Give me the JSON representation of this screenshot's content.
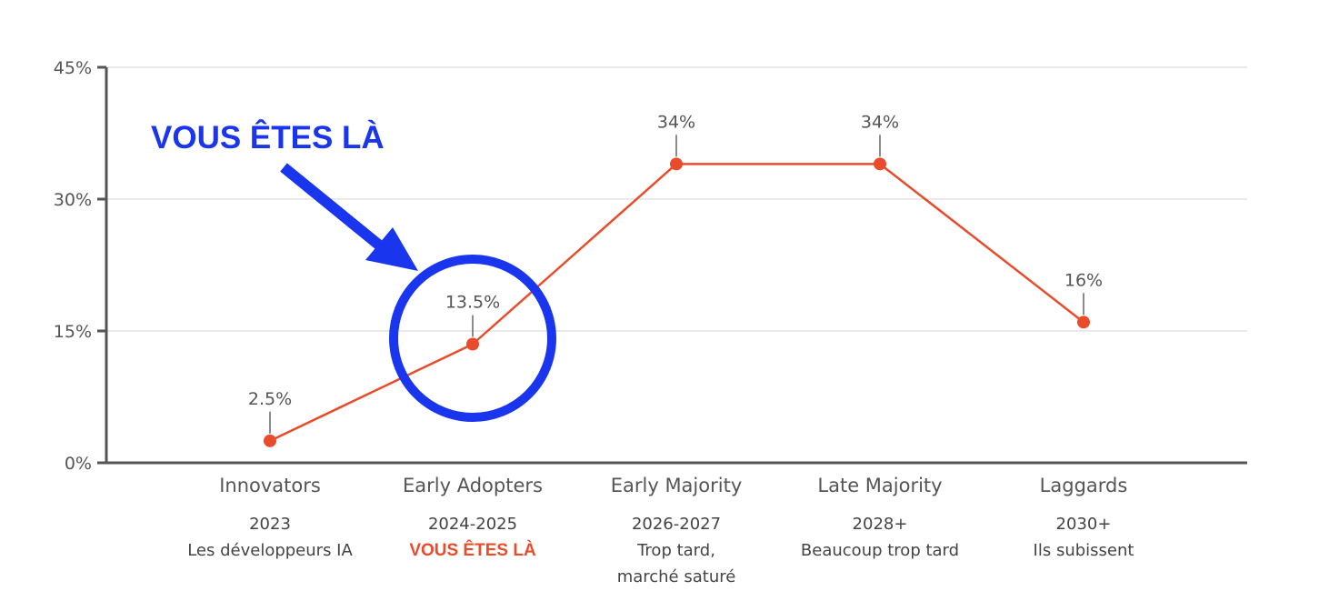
{
  "colors": {
    "line": "#e84c2b",
    "annotation": "#1a35ee",
    "axis": "#555555",
    "grid": "#dddddd",
    "highlight": "#e84c2b"
  },
  "annotation": {
    "text": "VOUS ÊTES LÀ",
    "target_category": "Early Adopters"
  },
  "chart_data": {
    "type": "line",
    "categories": [
      "Innovators",
      "Early Adopters",
      "Early Majority",
      "Late Majority",
      "Laggards"
    ],
    "values": [
      2.5,
      13.5,
      34,
      34,
      16
    ],
    "data_labels": [
      "2.5%",
      "13.5%",
      "34%",
      "34%",
      "16%"
    ],
    "sublabels": [
      [
        "2023",
        "Les développeurs IA"
      ],
      [
        "2024-2025",
        "VOUS ÊTES LÀ"
      ],
      [
        "2026-2027",
        "Trop tard,",
        "marché saturé"
      ],
      [
        "2028+",
        "Beaucoup trop tard"
      ],
      [
        "2030+",
        "Ils subissent"
      ]
    ],
    "highlighted_sublabel": {
      "category_index": 1,
      "line_index": 1
    },
    "yticks": [
      0,
      15,
      30,
      45
    ],
    "ytick_labels": [
      "0%",
      "15%",
      "30%",
      "45%"
    ],
    "ylim": [
      0,
      45
    ],
    "grid": true,
    "legend": "none",
    "title": "",
    "xlabel": "",
    "ylabel": ""
  }
}
